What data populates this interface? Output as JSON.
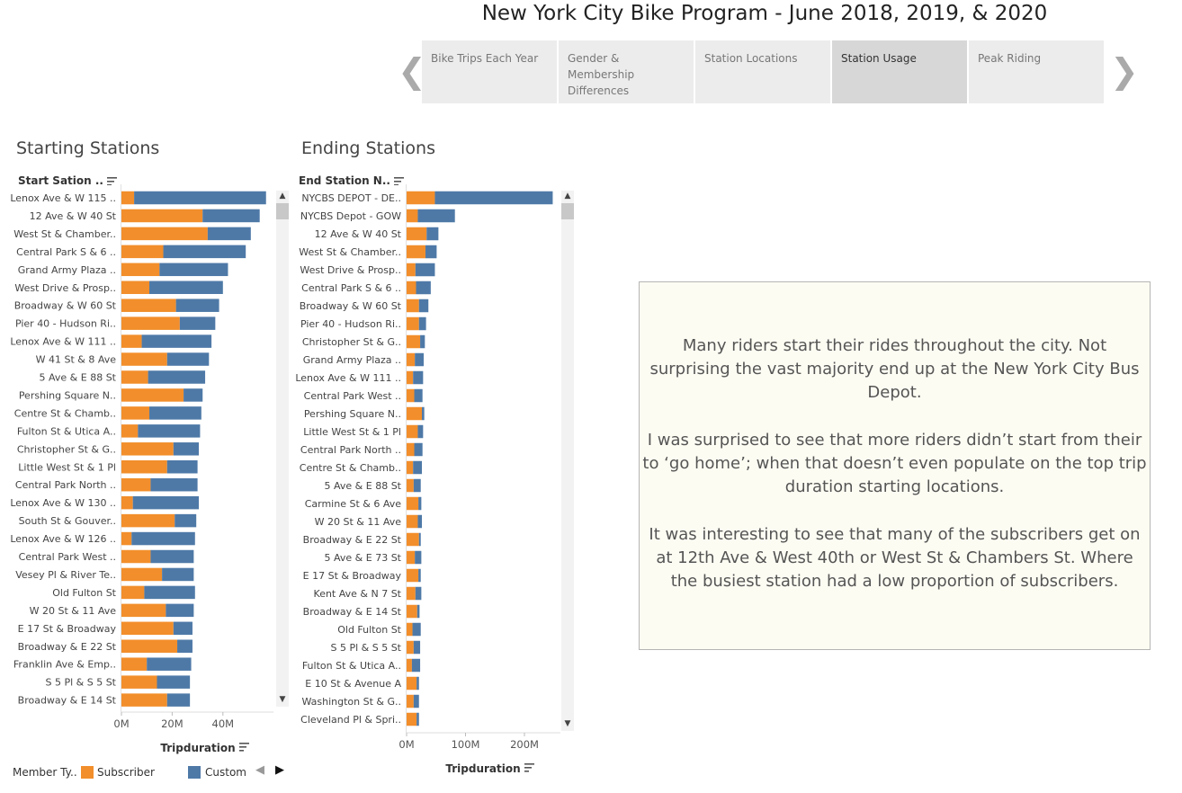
{
  "header": {
    "title": "New York City Bike Program - June 2018, 2019, & 2020"
  },
  "story": {
    "tabs": [
      {
        "label": "Bike Trips Each Year",
        "active": false
      },
      {
        "label": "Gender & Membership Differences",
        "active": false
      },
      {
        "label": "Station Locations",
        "active": false
      },
      {
        "label": "Station Usage",
        "active": true
      },
      {
        "label": "Peak Riding",
        "active": false
      }
    ],
    "prev_arrow": "❮",
    "next_arrow": "❯"
  },
  "start_panel": {
    "title": "Starting Stations",
    "field_header": "Start Sation .."
  },
  "end_panel": {
    "title": "Ending Stations",
    "field_header": "End Station N.."
  },
  "annotation": {
    "paragraphs": [
      "Many riders start their rides throughout the city. Not surprising the vast majority end up at the New York City Bus Depot.",
      "I was surprised to see that more riders didn’t start from their to ‘go home’; when that doesn’t even populate on the top trip duration starting locations.",
      "It was interesting to see that many of the subscribers get on at 12th Ave & West 40th or West St & Chambers St. Where the busiest station had a low proportion of subscribers."
    ]
  },
  "legend": {
    "title": "Member Ty..",
    "items": [
      {
        "label": "Subscriber",
        "color": "#f28e2b"
      },
      {
        "label": "Customer",
        "color": "#4e79a7"
      }
    ]
  },
  "chart_data": [
    {
      "type": "bar",
      "orientation": "horizontal",
      "stacked": true,
      "title": "Starting Stations",
      "xlabel": "Tripduration",
      "ylabel": "Start Sation ..",
      "xticks": [
        "0M",
        "20M",
        "40M"
      ],
      "xlim": [
        0,
        60
      ],
      "categories": [
        "Lenox Ave & W 115 ..",
        "12 Ave & W 40 St",
        "West St & Chamber..",
        "Central Park S & 6 ..",
        "Grand Army Plaza ..",
        "West Drive & Prosp..",
        "Broadway & W 60 St",
        "Pier 40 - Hudson Ri..",
        "Lenox Ave & W 111 ..",
        "W 41 St & 8 Ave",
        "5 Ave & E 88 St",
        "Pershing Square N..",
        "Centre St & Chamb..",
        "Fulton St & Utica A..",
        "Christopher St & G..",
        "Little West St & 1 Pl",
        "Central Park North ..",
        "Lenox Ave & W 130 ..",
        "South St & Gouver..",
        "Lenox Ave & W 126 ..",
        "Central Park West ..",
        "Vesey Pl & River Te..",
        "Old Fulton St",
        "W 20 St & 11 Ave",
        "E 17 St & Broadway",
        "Broadway & E 22 St",
        "Franklin Ave & Emp..",
        "S 5 Pl & S 5 St",
        "Broadway & E 14 St"
      ],
      "series": [
        {
          "name": "Subscriber",
          "color": "#f28e2b",
          "values": [
            5,
            32,
            34,
            16.5,
            15,
            11,
            21.5,
            23,
            8,
            18,
            10.5,
            24.5,
            11,
            6.5,
            20.5,
            18,
            11.5,
            4.5,
            21,
            4,
            11.5,
            16,
            9,
            17.5,
            20.5,
            22,
            10,
            14,
            18
          ]
        },
        {
          "name": "Customer",
          "color": "#4e79a7",
          "values": [
            52,
            22.5,
            17,
            32.5,
            27,
            29,
            17,
            14,
            27.5,
            16.5,
            22.5,
            7.5,
            20.5,
            24.5,
            10,
            12,
            18.5,
            26,
            8.5,
            25,
            17,
            12.5,
            20,
            11,
            7.5,
            6,
            17.5,
            13,
            9
          ]
        }
      ]
    },
    {
      "type": "bar",
      "orientation": "horizontal",
      "stacked": true,
      "title": "Ending Stations",
      "xlabel": "Tripduration",
      "ylabel": "End Station N..",
      "xticks": [
        "0M",
        "100M",
        "200M"
      ],
      "xlim": [
        0,
        265
      ],
      "categories": [
        "NYCBS DEPOT - DE..",
        "NYCBS Depot - GOW",
        "12 Ave & W 40 St",
        "West St & Chamber..",
        "West Drive & Prosp..",
        "Central Park S & 6 ..",
        "Broadway & W 60 St",
        "Pier 40 - Hudson Ri..",
        "Christopher St & G..",
        "Grand Army Plaza ..",
        "Lenox Ave & W 111 ..",
        "Central Park West ..",
        "Pershing Square N..",
        "Little West St & 1 Pl",
        "Central Park North ..",
        "Centre St & Chamb..",
        "5 Ave & E 88 St",
        "Carmine St & 6 Ave",
        "W 20 St & 11 Ave",
        "Broadway & E 22 St",
        "5 Ave & E 73 St",
        "E 17 St & Broadway",
        "Kent Ave & N 7 St",
        "Broadway & E 14 St",
        "Old Fulton St",
        "S 5 Pl & S 5 St",
        "Fulton St & Utica A..",
        "E 10 St & Avenue A",
        "Washington St & G..",
        "Cleveland Pl & Spri.."
      ],
      "series": [
        {
          "name": "Subscriber",
          "color": "#f28e2b",
          "values": [
            48,
            19,
            34,
            32,
            15,
            16,
            21,
            21,
            23,
            14,
            11,
            13,
            26,
            19,
            13,
            11,
            12,
            20,
            19,
            21,
            14,
            20,
            15,
            18,
            10,
            12,
            9,
            17,
            12,
            17
          ]
        },
        {
          "name": "Customer",
          "color": "#4e79a7",
          "values": [
            200,
            63,
            20,
            19,
            33,
            25,
            16,
            12,
            8,
            15,
            17,
            14,
            4,
            9,
            14,
            15,
            12,
            5,
            7,
            3,
            11,
            4,
            10,
            4,
            14,
            11,
            14,
            4,
            9,
            4
          ]
        }
      ]
    }
  ]
}
